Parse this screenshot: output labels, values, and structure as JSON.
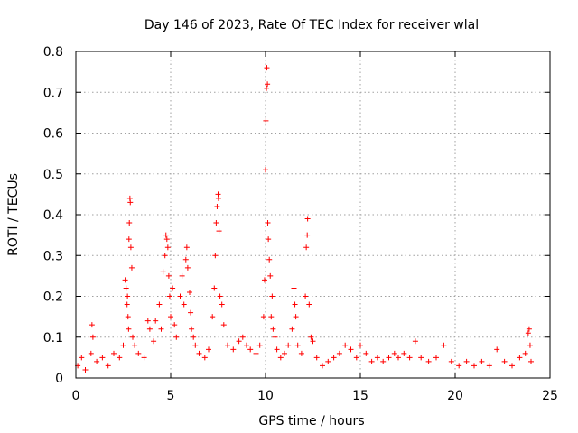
{
  "chart_data": {
    "type": "scatter",
    "title": "Day 146 of 2023, Rate Of TEC Index for receiver wlal",
    "xlabel": "GPS time / hours",
    "ylabel": "ROTI / TECUs",
    "xlim": [
      0,
      25
    ],
    "ylim": [
      0,
      0.8
    ],
    "xticks": [
      0,
      5,
      10,
      15,
      20,
      25
    ],
    "yticks": [
      0,
      0.1,
      0.2,
      0.3,
      0.4,
      0.5,
      0.6,
      0.7,
      0.8
    ],
    "xtick_labels": [
      "0",
      "5",
      "10",
      "15",
      "20",
      "25"
    ],
    "ytick_labels": [
      "0",
      "0.1",
      "0.2",
      "0.3",
      "0.4",
      "0.5",
      "0.6",
      "0.7",
      "0.8"
    ],
    "grid": true,
    "marker": "+",
    "color": "#ff0000",
    "series": [
      {
        "name": "ROTI",
        "points": [
          [
            0.1,
            0.03
          ],
          [
            0.3,
            0.05
          ],
          [
            0.5,
            0.02
          ],
          [
            0.8,
            0.06
          ],
          [
            0.85,
            0.13
          ],
          [
            0.9,
            0.1
          ],
          [
            1.1,
            0.04
          ],
          [
            1.4,
            0.05
          ],
          [
            1.7,
            0.03
          ],
          [
            2.0,
            0.06
          ],
          [
            2.3,
            0.05
          ],
          [
            2.5,
            0.08
          ],
          [
            2.6,
            0.24
          ],
          [
            2.65,
            0.22
          ],
          [
            2.7,
            0.18
          ],
          [
            2.72,
            0.2
          ],
          [
            2.75,
            0.15
          ],
          [
            2.78,
            0.12
          ],
          [
            2.8,
            0.34
          ],
          [
            2.82,
            0.38
          ],
          [
            2.85,
            0.44
          ],
          [
            2.87,
            0.43
          ],
          [
            2.9,
            0.32
          ],
          [
            2.95,
            0.27
          ],
          [
            3.0,
            0.1
          ],
          [
            3.1,
            0.08
          ],
          [
            3.3,
            0.06
          ],
          [
            3.6,
            0.05
          ],
          [
            3.8,
            0.14
          ],
          [
            3.9,
            0.12
          ],
          [
            4.1,
            0.09
          ],
          [
            4.2,
            0.14
          ],
          [
            4.4,
            0.18
          ],
          [
            4.5,
            0.12
          ],
          [
            4.6,
            0.26
          ],
          [
            4.7,
            0.3
          ],
          [
            4.75,
            0.35
          ],
          [
            4.8,
            0.34
          ],
          [
            4.85,
            0.32
          ],
          [
            4.9,
            0.25
          ],
          [
            4.95,
            0.2
          ],
          [
            5.0,
            0.15
          ],
          [
            5.1,
            0.22
          ],
          [
            5.2,
            0.13
          ],
          [
            5.3,
            0.1
          ],
          [
            5.5,
            0.2
          ],
          [
            5.6,
            0.25
          ],
          [
            5.7,
            0.18
          ],
          [
            5.8,
            0.29
          ],
          [
            5.85,
            0.32
          ],
          [
            5.9,
            0.27
          ],
          [
            6.0,
            0.21
          ],
          [
            6.05,
            0.16
          ],
          [
            6.1,
            0.12
          ],
          [
            6.2,
            0.1
          ],
          [
            6.3,
            0.08
          ],
          [
            6.5,
            0.06
          ],
          [
            6.8,
            0.05
          ],
          [
            7.0,
            0.07
          ],
          [
            7.2,
            0.15
          ],
          [
            7.3,
            0.22
          ],
          [
            7.35,
            0.3
          ],
          [
            7.4,
            0.38
          ],
          [
            7.45,
            0.42
          ],
          [
            7.5,
            0.45
          ],
          [
            7.52,
            0.44
          ],
          [
            7.55,
            0.36
          ],
          [
            7.6,
            0.2
          ],
          [
            7.7,
            0.18
          ],
          [
            7.8,
            0.13
          ],
          [
            8.0,
            0.08
          ],
          [
            8.3,
            0.07
          ],
          [
            8.6,
            0.09
          ],
          [
            8.8,
            0.1
          ],
          [
            9.0,
            0.08
          ],
          [
            9.2,
            0.07
          ],
          [
            9.5,
            0.06
          ],
          [
            9.7,
            0.08
          ],
          [
            9.9,
            0.15
          ],
          [
            9.95,
            0.24
          ],
          [
            10.0,
            0.51
          ],
          [
            10.02,
            0.63
          ],
          [
            10.05,
            0.71
          ],
          [
            10.07,
            0.76
          ],
          [
            10.1,
            0.72
          ],
          [
            10.12,
            0.38
          ],
          [
            10.15,
            0.34
          ],
          [
            10.2,
            0.29
          ],
          [
            10.25,
            0.25
          ],
          [
            10.3,
            0.15
          ],
          [
            10.35,
            0.2
          ],
          [
            10.4,
            0.12
          ],
          [
            10.5,
            0.1
          ],
          [
            10.6,
            0.07
          ],
          [
            10.8,
            0.05
          ],
          [
            11.0,
            0.06
          ],
          [
            11.2,
            0.08
          ],
          [
            11.4,
            0.12
          ],
          [
            11.5,
            0.22
          ],
          [
            11.55,
            0.18
          ],
          [
            11.6,
            0.15
          ],
          [
            11.7,
            0.08
          ],
          [
            11.9,
            0.06
          ],
          [
            12.1,
            0.2
          ],
          [
            12.15,
            0.32
          ],
          [
            12.2,
            0.35
          ],
          [
            12.22,
            0.39
          ],
          [
            12.3,
            0.18
          ],
          [
            12.4,
            0.1
          ],
          [
            12.5,
            0.09
          ],
          [
            12.7,
            0.05
          ],
          [
            13.0,
            0.03
          ],
          [
            13.3,
            0.04
          ],
          [
            13.6,
            0.05
          ],
          [
            13.9,
            0.06
          ],
          [
            14.2,
            0.08
          ],
          [
            14.5,
            0.07
          ],
          [
            14.8,
            0.05
          ],
          [
            15.0,
            0.08
          ],
          [
            15.3,
            0.06
          ],
          [
            15.6,
            0.04
          ],
          [
            15.9,
            0.05
          ],
          [
            16.2,
            0.04
          ],
          [
            16.5,
            0.05
          ],
          [
            16.8,
            0.06
          ],
          [
            17.0,
            0.05
          ],
          [
            17.3,
            0.06
          ],
          [
            17.6,
            0.05
          ],
          [
            17.9,
            0.09
          ],
          [
            18.2,
            0.05
          ],
          [
            18.6,
            0.04
          ],
          [
            19.0,
            0.05
          ],
          [
            19.4,
            0.08
          ],
          [
            19.8,
            0.04
          ],
          [
            20.2,
            0.03
          ],
          [
            20.6,
            0.04
          ],
          [
            21.0,
            0.03
          ],
          [
            21.4,
            0.04
          ],
          [
            21.8,
            0.03
          ],
          [
            22.2,
            0.07
          ],
          [
            22.6,
            0.04
          ],
          [
            23.0,
            0.03
          ],
          [
            23.4,
            0.05
          ],
          [
            23.7,
            0.06
          ],
          [
            23.85,
            0.11
          ],
          [
            23.9,
            0.12
          ],
          [
            23.95,
            0.08
          ],
          [
            24.0,
            0.04
          ]
        ]
      }
    ]
  }
}
